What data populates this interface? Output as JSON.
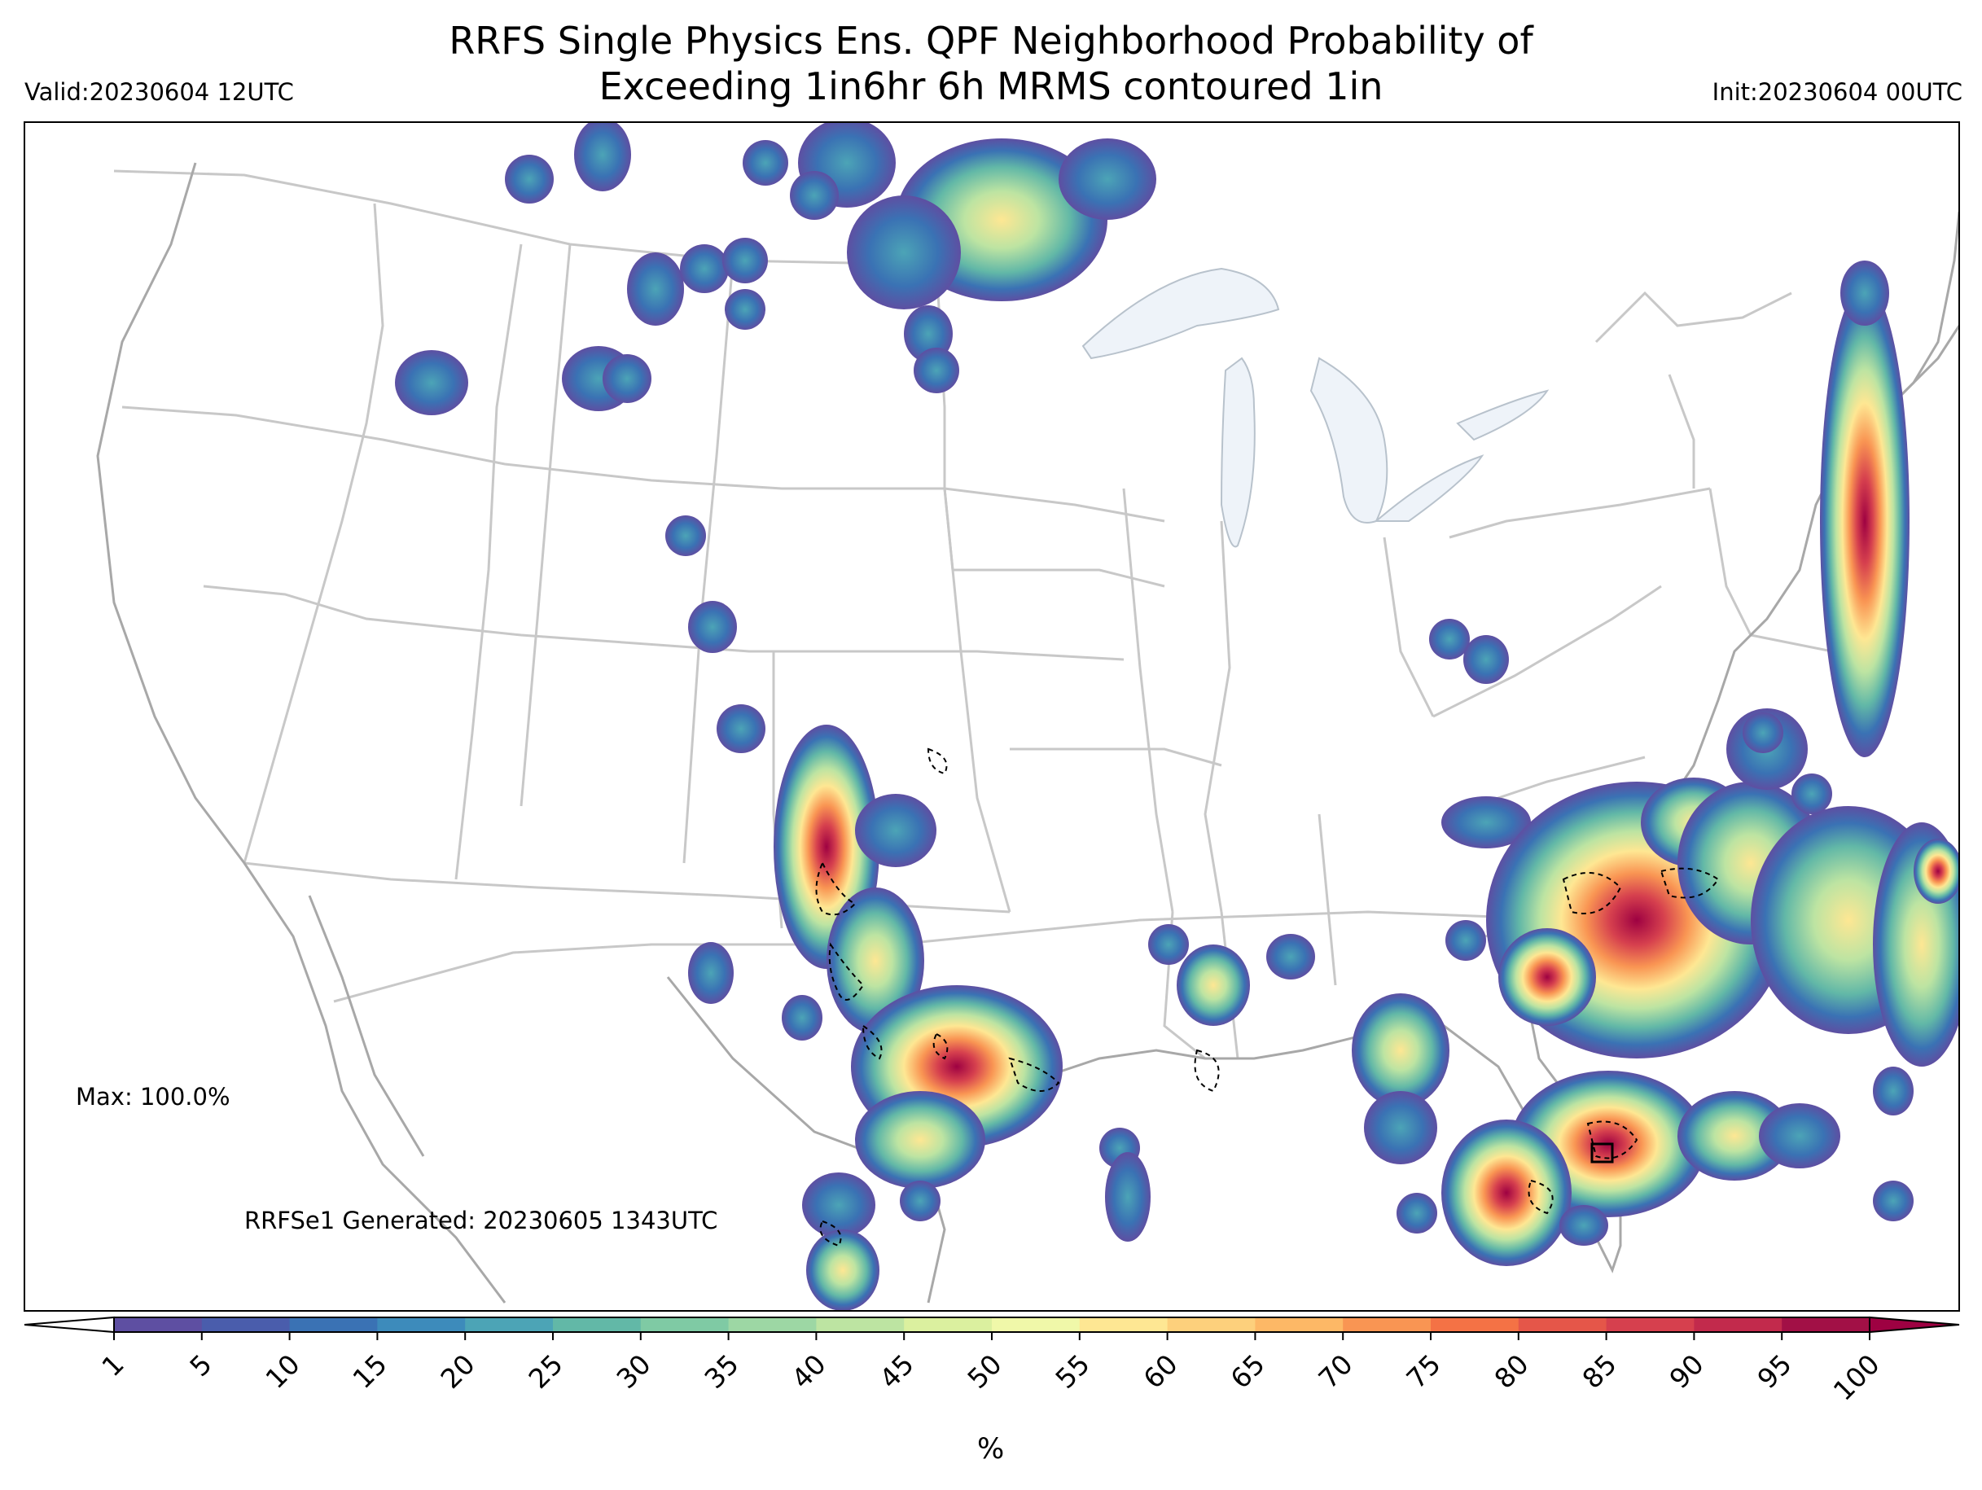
{
  "title": "RRFS Single Physics Ens. QPF Neighborhood Probability of\nExceeding 1in6hr 6h MRMS contoured 1in",
  "valid_label": "Valid:20230604 12UTC",
  "init_label": "Init:20230604 00UTC",
  "max_label": "Max: 100.0%",
  "generated_label": "RRFSe1 Generated: 20230605 1343UTC",
  "colorbar": {
    "units": "%",
    "ticks": [
      "1",
      "5",
      "10",
      "15",
      "20",
      "25",
      "30",
      "35",
      "40",
      "45",
      "50",
      "55",
      "60",
      "65",
      "70",
      "75",
      "80",
      "85",
      "90",
      "95",
      "100"
    ],
    "colors": [
      "#5e4fa2",
      "#4a5dac",
      "#3a72b4",
      "#3d8bbb",
      "#4ca4b6",
      "#62b8a7",
      "#7fcaa4",
      "#9dd7a4",
      "#bde4a2",
      "#dbf09f",
      "#f0f8a9",
      "#fee793",
      "#fdd07c",
      "#fdb866",
      "#f99553",
      "#f47245",
      "#e55649",
      "#d6404e",
      "#c22a4c",
      "#a21046",
      "#9e0142"
    ]
  },
  "map": {
    "background": "#ffffff",
    "state_line_color": "#c8c8c8",
    "coast_line_color": "#a8a8a8",
    "lake_fill": "#eef3f9",
    "observed_contour_style": "black dashed"
  }
}
